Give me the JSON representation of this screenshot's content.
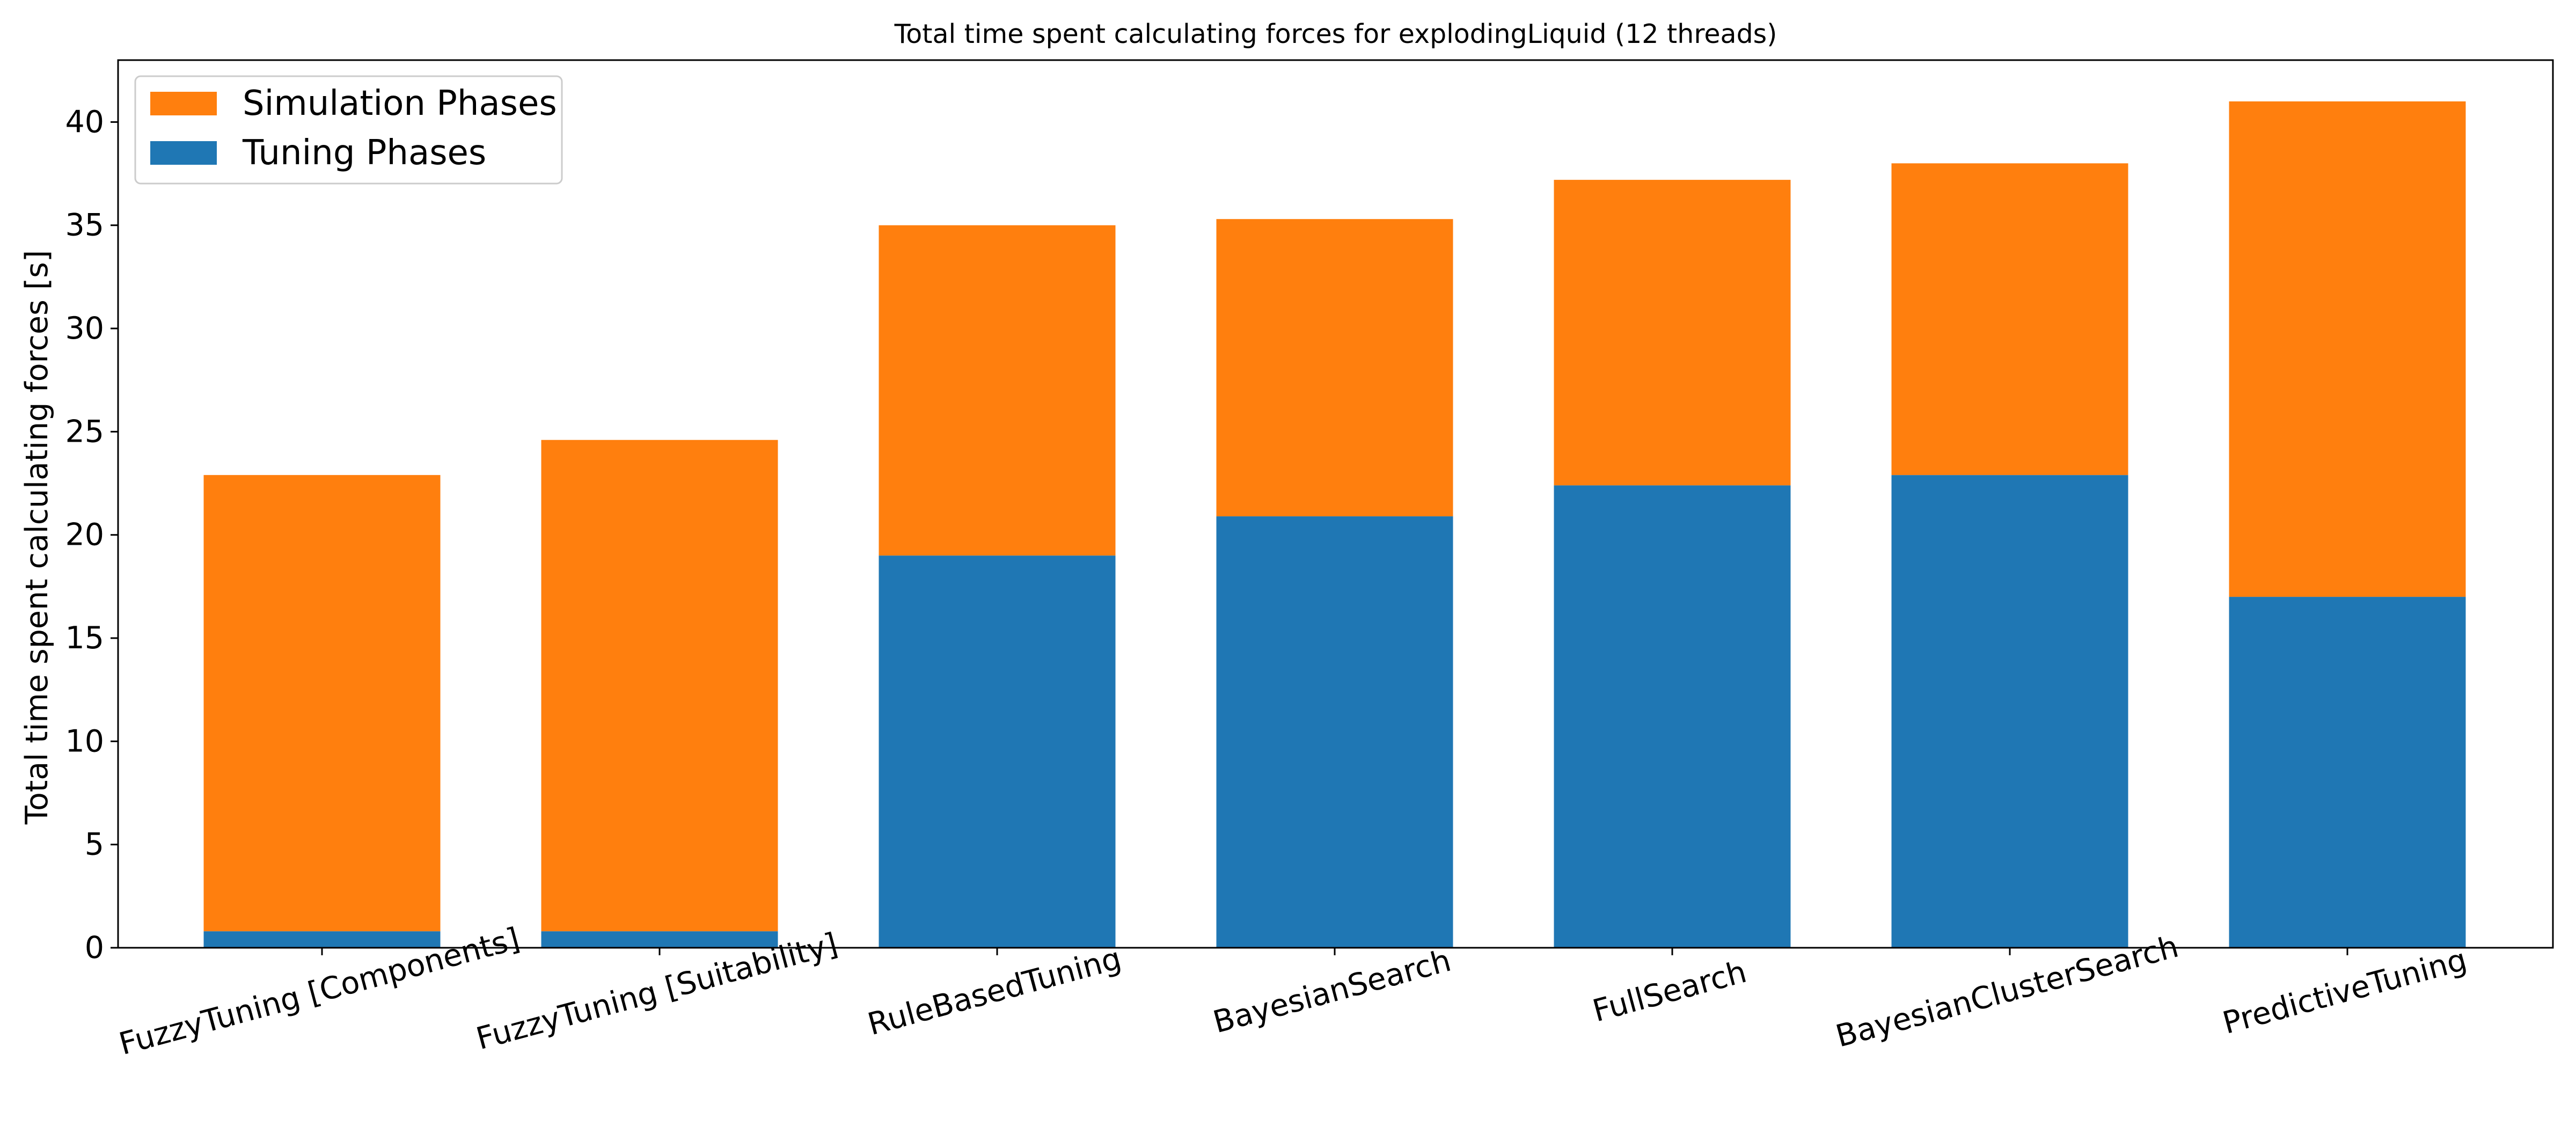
{
  "chart_data": {
    "type": "bar",
    "stacked": true,
    "title": "Total time spent calculating forces for explodingLiquid (12 threads)",
    "xlabel": "",
    "ylabel": "Total time spent calculating forces [s]",
    "categories": [
      "FuzzyTuning [Components]",
      "FuzzyTuning [Suitability]",
      "RuleBasedTuning",
      "BayesianSearch",
      "FullSearch",
      "BayesianClusterSearch",
      "PredictiveTuning"
    ],
    "series": [
      {
        "name": "Tuning Phases",
        "color": "#1f77b4",
        "values": [
          0.8,
          0.8,
          19.0,
          20.9,
          22.4,
          22.9,
          17.0
        ]
      },
      {
        "name": "Simulation Phases",
        "color": "#ff7f0e",
        "values": [
          22.1,
          23.8,
          16.0,
          14.4,
          14.8,
          15.1,
          24.0
        ]
      }
    ],
    "totals": [
      22.9,
      24.6,
      35.0,
      35.3,
      37.2,
      38.0,
      41.0
    ],
    "ylim": [
      0,
      43
    ],
    "yticks": [
      0,
      5,
      10,
      15,
      20,
      25,
      30,
      35,
      40
    ],
    "x_tick_rotation_deg": 15,
    "legend": {
      "position": "top-left",
      "order": [
        "Simulation Phases",
        "Tuning Phases"
      ]
    },
    "grid": false
  }
}
